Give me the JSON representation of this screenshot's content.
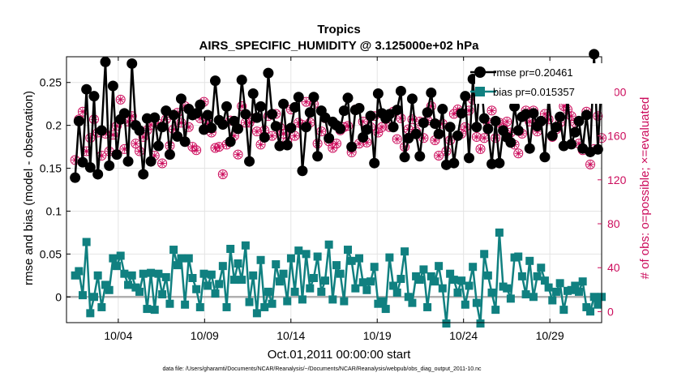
{
  "chart_data": {
    "type": "line",
    "title": "Tropics",
    "subtitle": "AIRS_SPECIFIC_HUMIDITY @ 3.125000e+02 hPa",
    "xlabel": "Oct.01,2011 00:00:00 start",
    "ylabel": "rmse and bias (model - observation)",
    "y2label": "# of obs: o=possible; ×=evaluated",
    "footnote": "data file: /Users/gharamti/Documents/NCAR/Reanalysis/~/Documents/NCAR/Reanalysis/webpub/obs_diag_output_2011-10.nc",
    "xlim": [
      0,
      31
    ],
    "ylim": [
      -0.03,
      0.28
    ],
    "y2lim": [
      -10,
      232
    ],
    "x_ticks": [
      3,
      8,
      13,
      18,
      23,
      28
    ],
    "x_tick_labels": [
      "10/04",
      "10/09",
      "10/14",
      "10/19",
      "10/24",
      "10/29"
    ],
    "y_ticks": [
      0,
      0.05,
      0.1,
      0.15,
      0.2,
      0.25
    ],
    "y_tick_labels": [
      "0",
      "0.05",
      "0.1",
      "0.15",
      "0.2",
      "0.25"
    ],
    "y2_ticks": [
      0,
      40,
      80,
      120,
      160,
      200
    ],
    "y2_tick_labels": [
      "0",
      "40",
      "80",
      "120",
      "160",
      "200"
    ],
    "grid": true,
    "legend_position": "top-right",
    "colors": {
      "rmse": "#000000",
      "bias": "#108080",
      "obs": "#cc0c5c",
      "zero_line": "#b0b0b0",
      "grid": "#e4e4e4"
    },
    "series": [
      {
        "name": "rmse pr=0.20461",
        "axis": "left",
        "values": [
          0.139,
          0.205,
          0.157,
          0.242,
          0.151,
          0.234,
          0.143,
          0.194,
          0.274,
          0.153,
          0.246,
          0.166,
          0.207,
          0.214,
          0.158,
          0.272,
          0.2,
          0.194,
          0.143,
          0.208,
          0.158,
          0.209,
          0.176,
          0.198,
          0.217,
          0.166,
          0.212,
          0.187,
          0.231,
          0.181,
          0.219,
          0.212,
          0.214,
          0.224,
          0.195,
          0.212,
          0.197,
          0.252,
          0.206,
          0.201,
          0.222,
          0.181,
          0.205,
          0.196,
          0.253,
          0.213,
          0.158,
          0.237,
          0.209,
          0.222,
          0.186,
          0.261,
          0.213,
          0.199,
          0.176,
          0.225,
          0.177,
          0.197,
          0.221,
          0.233,
          0.147,
          0.198,
          0.215,
          0.233,
          0.164,
          0.217,
          0.209,
          0.185,
          0.204,
          0.2,
          0.196,
          0.217,
          0.232,
          0.175,
          0.218,
          0.22,
          0.186,
          0.195,
          0.211,
          0.156,
          0.237,
          0.214,
          0.208,
          0.213,
          0.198,
          0.218,
          0.24,
          0.163,
          0.185,
          0.231,
          0.19,
          0.164,
          0.203,
          0.215,
          0.238,
          0.202,
          0.19,
          0.219,
          0.154,
          0.198,
          0.156,
          0.188,
          0.214,
          0.234,
          0.162,
          0.254,
          0.198,
          0.263,
          0.208,
          0.196,
          0.155,
          0.205,
          0.156,
          0.194,
          0.186,
          0.18,
          0.222,
          0.194,
          0.21,
          0.213,
          0.173,
          0.214,
          0.199,
          0.205,
          0.163,
          0.233,
          0.188,
          0.198,
          0.21,
          0.176,
          0.232,
          0.178,
          0.192,
          0.205,
          0.173,
          0.212,
          0.169,
          0.283,
          0.172,
          0.258
        ]
      },
      {
        "name": "bias pr=0.015357",
        "axis": "left",
        "values": [
          0.025,
          0.03,
          0.002,
          0.064,
          -0.019,
          0.0,
          0.025,
          -0.012,
          0.014,
          0.008,
          0.045,
          0.036,
          0.048,
          0.027,
          0.014,
          0.025,
          0.011,
          0.006,
          0.027,
          -0.014,
          0.028,
          -0.015,
          0.027,
          0.003,
          0.023,
          -0.008,
          0.055,
          0.037,
          0.045,
          -0.009,
          0.045,
          0.022,
          0.009,
          -0.012,
          0.027,
          0.013,
          0.026,
          0.004,
          0.015,
          0.036,
          -0.012,
          0.056,
          0.02,
          0.039,
          0.02,
          0.06,
          -0.006,
          0.025,
          -0.019,
          0.043,
          -0.012,
          0.006,
          -0.008,
          0.038,
          0.018,
          0.027,
          -0.005,
          0.045,
          0.006,
          0.054,
          -0.003,
          0.05,
          0.01,
          0.022,
          0.047,
          0.006,
          0.019,
          0.061,
          -0.003,
          0.037,
          0.027,
          -0.005,
          0.055,
          0.042,
          0.01,
          0.045,
          0.017,
          0.008,
          0.018,
          0.035,
          -0.008,
          -0.005,
          -0.014,
          0.046,
          0.013,
          0.005,
          0.021,
          0.053,
          0.0,
          -0.007,
          0.024,
          0.02,
          0.032,
          -0.012,
          0.024,
          0.018,
          0.036,
          0.01,
          -0.031,
          0.027,
          0.02,
          0.005,
          0.019,
          -0.009,
          0.013,
          0.035,
          -0.007,
          -0.031,
          0.05,
          0.025,
          0.005,
          -0.015,
          0.075,
          0.012,
          0.01,
          -0.002,
          0.046,
          0.047,
          0.024,
          0.003,
          0.042,
          0.0,
          0.024,
          0.034,
          0.019,
          0.011,
          -0.004,
          0.006,
          0.016,
          -0.015,
          0.007,
          0.008,
          0.013,
          0.006,
          0.018,
          -0.012,
          -0.017,
          0.0,
          -0.009,
          0.0
        ]
      },
      {
        "name": "# obs possible (o)",
        "axis": "right",
        "values": [
          138,
          175,
          182,
          146,
          158,
          175,
          163,
          142,
          162,
          146,
          161,
          169,
          193,
          148,
          173,
          178,
          153,
          146,
          159,
          165,
          170,
          142,
          171,
          135,
          175,
          151,
          166,
          181,
          172,
          187,
          168,
          150,
          147,
          176,
          191,
          171,
          163,
          149,
          150,
          125,
          152,
          174,
          160,
          143,
          187,
          172,
          172,
          176,
          164,
          152,
          165,
          178,
          160,
          180,
          168,
          162,
          155,
          184,
          160,
          172,
          170,
          191,
          172,
          189,
          153,
          164,
          176,
          155,
          149,
          153,
          165,
          168,
          169,
          145,
          184,
          153,
          173,
          154,
          168,
          178,
          163,
          168,
          176,
          168,
          182,
          157,
          176,
          150,
          166,
          175,
          164,
          173,
          158,
          174,
          187,
          156,
          142,
          171,
          146,
          156,
          180,
          184,
          162,
          168,
          183,
          193,
          159,
          148,
          158,
          172,
          183,
          158,
          172,
          167,
          173,
          163,
          152,
          144,
          162,
          183,
          173,
          183,
          164,
          173,
          180,
          175,
          159,
          166,
          172,
          187,
          184,
          178,
          172,
          153,
          147,
          182,
          134,
          148,
          178,
          158
        ]
      },
      {
        "name": "# obs evaluated (×)",
        "axis": "right",
        "values": [
          138,
          175,
          182,
          146,
          158,
          175,
          163,
          142,
          162,
          146,
          161,
          169,
          193,
          148,
          173,
          178,
          153,
          146,
          159,
          165,
          170,
          142,
          171,
          135,
          175,
          151,
          166,
          181,
          172,
          187,
          168,
          150,
          147,
          176,
          191,
          171,
          163,
          149,
          150,
          125,
          152,
          174,
          160,
          143,
          187,
          172,
          172,
          176,
          164,
          152,
          165,
          178,
          160,
          180,
          168,
          162,
          155,
          184,
          160,
          172,
          170,
          191,
          172,
          189,
          153,
          164,
          176,
          155,
          149,
          153,
          165,
          168,
          169,
          145,
          184,
          153,
          173,
          154,
          168,
          178,
          163,
          168,
          176,
          168,
          182,
          157,
          176,
          150,
          166,
          175,
          164,
          173,
          158,
          174,
          187,
          156,
          142,
          171,
          146,
          156,
          180,
          184,
          162,
          168,
          183,
          193,
          159,
          148,
          158,
          172,
          183,
          158,
          172,
          167,
          173,
          163,
          152,
          144,
          162,
          183,
          173,
          183,
          164,
          173,
          180,
          175,
          159,
          166,
          172,
          187,
          184,
          178,
          172,
          153,
          147,
          182,
          134,
          148,
          178,
          158
        ]
      }
    ]
  }
}
